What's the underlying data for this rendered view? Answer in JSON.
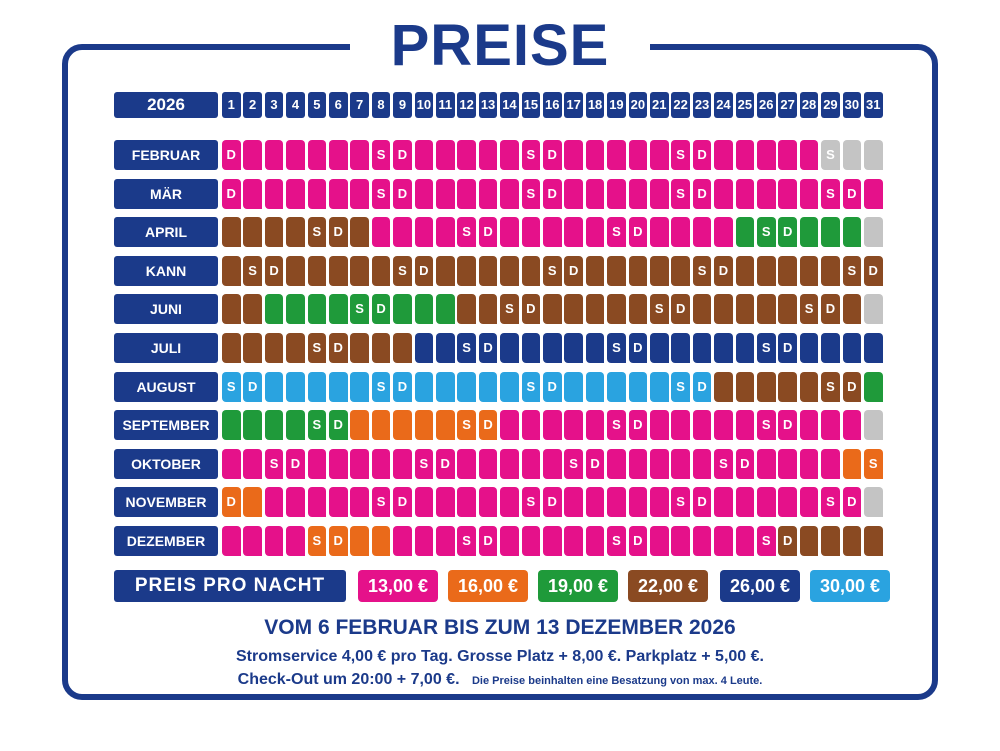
{
  "title": "PREISE",
  "year": "2026",
  "days": [
    "1",
    "2",
    "3",
    "4",
    "5",
    "6",
    "7",
    "8",
    "9",
    "10",
    "11",
    "12",
    "13",
    "14",
    "15",
    "16",
    "17",
    "18",
    "19",
    "20",
    "21",
    "22",
    "23",
    "24",
    "25",
    "26",
    "27",
    "28",
    "29",
    "30",
    "31"
  ],
  "colors": {
    "P": "#e5118a",
    "O": "#ea6a1a",
    "G": "#1f9a3a",
    "B": "#8a4a22",
    "N": "#1b3a8a",
    "L": "#2aa3e0",
    "X": "#c4c4c4"
  },
  "months": [
    {
      "name": "FEBRUAR",
      "colors": "PPPPPPPPPPPPPPPPPPPPPPPPPPPPXXX",
      "marks": "D......SD.....SD.....SD.....S.."
    },
    {
      "name": "MÄR",
      "colors": "PPPPPPPPPPPPPPPPPPPPPPPPPPPPPPP",
      "marks": "D......SD.....SD.....SD.....SD."
    },
    {
      "name": "APRIL",
      "colors": "BBBBBBBPPPPPPPPPPPPPPPPPGGGGGGX",
      "marks": "....SD.....SD.....SD.....SD...."
    },
    {
      "name": "KANN",
      "colors": "BBBBBBBBBBBBBBBBBBBBBBBBBBBBBBB",
      "marks": ".SD.....SD.....SD.....SD.....SD"
    },
    {
      "name": "JUNI",
      "colors": "BBGGGGGGGGGBBBBBBBBBBBBBBBBBBBX",
      "marks": "......SD.....SD.....SD.....SD.."
    },
    {
      "name": "JULI",
      "colors": "BBBBBBBBBNNNNNNNNNNNNNNNNNNNNNN",
      "marks": "....SD.....SD.....SD.....SD...."
    },
    {
      "name": "AUGUST",
      "colors": "LLLLLLLLLLLLLLLLLLLLLLLBBBBBBBG",
      "marks": "SD.....SD.....SD.....SD.....SD."
    },
    {
      "name": "SEPTEMBER",
      "colors": "GGGGGGOOOOOOOPPPPPPPPPPPPPPPPPX",
      "marks": "....SD.....SD.....SD.....SD...."
    },
    {
      "name": "OKTOBER",
      "colors": "PPPPPPPPPPPPPPPPPPPPPPPPPPPPPOO",
      "marks": "..SD.....SD.....SD.....SD.....S"
    },
    {
      "name": "NOVEMBER",
      "colors": "OOPPPPPPPPPPPPPPPPPPPPPPPPPPPPX",
      "marks": "D......SD.....SD.....SD.....SD."
    },
    {
      "name": "DEZEMBER",
      "colors": "PPPPOOOOPPPPPPPPPPPPPPPPPPBBBBB",
      "marks": "....SD.....SD.....SD.....SD...."
    }
  ],
  "price_label": "PREIS PRO NACHT",
  "prices": [
    {
      "label": "13,00 €",
      "color": "#e5118a"
    },
    {
      "label": "16,00 €",
      "color": "#ea6a1a"
    },
    {
      "label": "19,00 €",
      "color": "#1f9a3a"
    },
    {
      "label": "22,00 €",
      "color": "#8a4a22"
    },
    {
      "label": "26,00 €",
      "color": "#1b3a8a"
    },
    {
      "label": "30,00 €",
      "color": "#2aa3e0"
    }
  ],
  "footer": {
    "line1": "VOM 6 FEBRUAR BIS ZUM 13 DEZEMBER 2026",
    "line2": "Stromservice 4,00 € pro Tag. Grosse Platz + 8,00 €. Parkplatz + 5,00 €.",
    "line3": "Check-Out um 20:00 + 7,00 €.",
    "line3_small": "Die Preise beinhalten eine Besatzung von max. 4 Leute."
  }
}
